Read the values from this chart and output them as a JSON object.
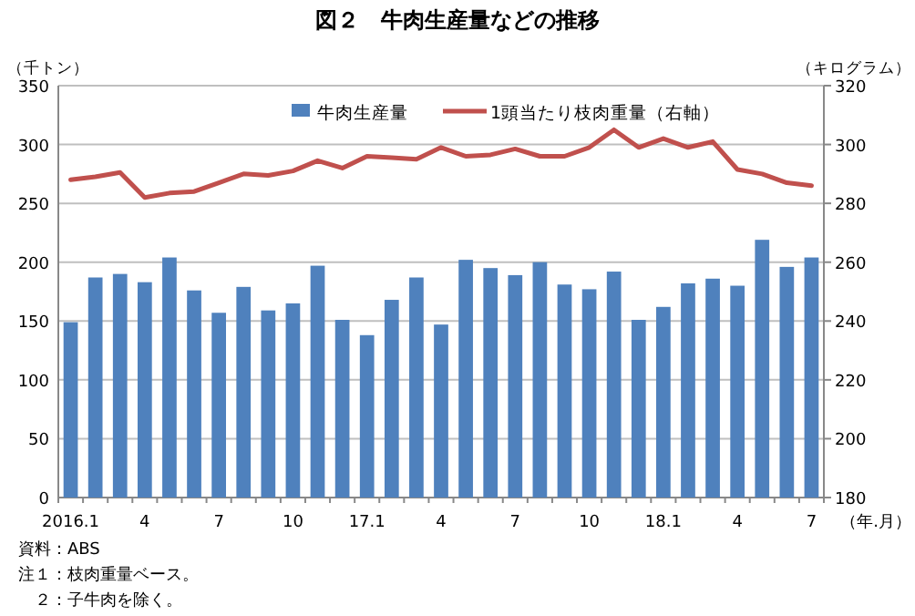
{
  "chart_data": {
    "type": "bar",
    "title": "図２　牛肉生産量などの推移",
    "ylabel": "（千トン）",
    "y2label": "（キログラム）",
    "xlabel": "（年.月）",
    "categories": [
      "2016.1",
      null,
      null,
      "4",
      null,
      null,
      "7",
      null,
      null,
      "10",
      null,
      null,
      "17.1",
      null,
      null,
      "4",
      null,
      null,
      "7",
      null,
      null,
      "10",
      null,
      null,
      "18.1",
      null,
      null,
      "4",
      null,
      null,
      "7"
    ],
    "series": [
      {
        "name": "牛肉生産量",
        "color": "#4f81bd",
        "values": [
          149,
          187,
          190,
          183,
          204,
          176,
          157,
          179,
          159,
          165,
          197,
          151,
          138,
          168,
          187,
          147,
          202,
          195,
          189,
          200,
          181,
          177,
          192,
          151,
          162,
          182,
          186,
          180,
          219,
          196,
          204
        ]
      },
      {
        "name": "1頭当たり枝肉重量（右軸）",
        "type": "line",
        "axis": "y2",
        "color": "#c0504d",
        "values": [
          288,
          289,
          290.5,
          282,
          283.5,
          284,
          287,
          290,
          289.5,
          291,
          294.5,
          292,
          296,
          295.5,
          295,
          299,
          296,
          296.5,
          298.5,
          296,
          296,
          299,
          305,
          299,
          302,
          299,
          301,
          291.5,
          290,
          287,
          286
        ]
      }
    ],
    "ylim": [
      0,
      350
    ],
    "yticks": [
      0,
      50,
      100,
      150,
      200,
      250,
      300,
      350
    ],
    "y2lim": [
      180,
      320
    ],
    "y2ticks": [
      180,
      200,
      220,
      240,
      260,
      280,
      300,
      320
    ],
    "grid": "y",
    "legend": "top",
    "annotations": [
      "資料：ABS",
      "注１：枝肉重量ベース。",
      "　２：子牛肉を除く。"
    ]
  }
}
